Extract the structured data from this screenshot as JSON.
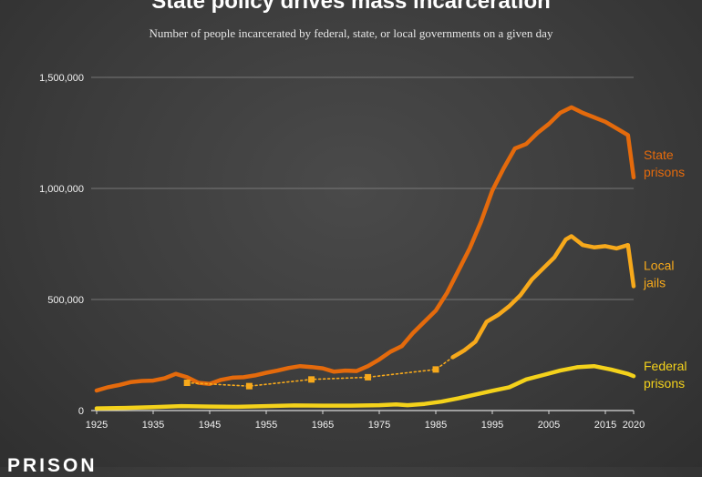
{
  "header": {
    "title": "State policy drives mass incarceration",
    "subtitle": "Number of people incarcerated by federal, state, or local governments on a given day"
  },
  "brand": {
    "text": "PRISON"
  },
  "colors": {
    "state": "#e46a0c",
    "local": "#f7a91b",
    "federal": "#f4d21b",
    "grid": "#8a8a8a",
    "axis": "#d9d9d9"
  },
  "chart_data": {
    "type": "line",
    "title": "State policy drives mass incarceration",
    "subtitle": "Number of people incarcerated by federal, state, or local governments on a given day",
    "xlabel": "",
    "ylabel": "",
    "xlim": [
      1925,
      2020
    ],
    "ylim": [
      0,
      1500000
    ],
    "x_ticks": [
      1925,
      1935,
      1945,
      1955,
      1965,
      1975,
      1985,
      1995,
      2005,
      2015,
      2020
    ],
    "y_ticks": [
      0,
      500000,
      1000000,
      1500000
    ],
    "y_tick_labels": [
      "0",
      "500,000",
      "1,000,000",
      "1,500,000"
    ],
    "grid": "horizontal",
    "series": [
      {
        "name": "State prisons",
        "label_lines": [
          "State",
          "prisons"
        ],
        "color": "#e46a0c",
        "x": [
          1925,
          1927,
          1929,
          1931,
          1933,
          1935,
          1937,
          1939,
          1941,
          1943,
          1945,
          1947,
          1949,
          1951,
          1953,
          1955,
          1957,
          1959,
          1961,
          1963,
          1965,
          1967,
          1969,
          1971,
          1973,
          1975,
          1977,
          1979,
          1981,
          1983,
          1985,
          1987,
          1989,
          1991,
          1993,
          1995,
          1997,
          1999,
          2001,
          2003,
          2005,
          2007,
          2009,
          2011,
          2013,
          2015,
          2017,
          2019,
          2020
        ],
        "values": [
          90000,
          105000,
          115000,
          128000,
          133000,
          135000,
          145000,
          165000,
          150000,
          125000,
          120000,
          138000,
          148000,
          150000,
          158000,
          170000,
          180000,
          192000,
          200000,
          196000,
          190000,
          175000,
          180000,
          178000,
          200000,
          230000,
          265000,
          290000,
          350000,
          400000,
          450000,
          530000,
          630000,
          730000,
          850000,
          990000,
          1090000,
          1180000,
          1200000,
          1250000,
          1290000,
          1340000,
          1365000,
          1340000,
          1320000,
          1300000,
          1270000,
          1240000,
          1050000
        ]
      },
      {
        "name": "Local jails",
        "label_lines": [
          "Local",
          "jails"
        ],
        "color": "#f7a91b",
        "x": [
          1988,
          1990,
          1992,
          1994,
          1996,
          1998,
          2000,
          2002,
          2004,
          2006,
          2008,
          2009,
          2011,
          2013,
          2015,
          2017,
          2019,
          2020
        ],
        "values": [
          240000,
          270000,
          310000,
          400000,
          430000,
          470000,
          520000,
          590000,
          640000,
          690000,
          770000,
          785000,
          745000,
          735000,
          740000,
          730000,
          745000,
          560000
        ],
        "early_x": [
          1941,
          1952,
          1963,
          1973,
          1985
        ],
        "early_values": [
          125000,
          110000,
          140000,
          150000,
          185000
        ]
      },
      {
        "name": "Federal prisons",
        "label_lines": [
          "Federal",
          "prisons"
        ],
        "color": "#f4d21b",
        "x": [
          1925,
          1930,
          1935,
          1940,
          1945,
          1950,
          1955,
          1960,
          1965,
          1970,
          1975,
          1978,
          1980,
          1983,
          1986,
          1989,
          1992,
          1995,
          1998,
          2001,
          2004,
          2007,
          2010,
          2013,
          2016,
          2019,
          2020
        ],
        "values": [
          10000,
          12000,
          15000,
          20000,
          18000,
          17000,
          20000,
          23000,
          22000,
          22000,
          24000,
          28000,
          24000,
          30000,
          40000,
          55000,
          72000,
          89000,
          105000,
          140000,
          160000,
          180000,
          195000,
          200000,
          185000,
          165000,
          155000
        ]
      }
    ]
  }
}
